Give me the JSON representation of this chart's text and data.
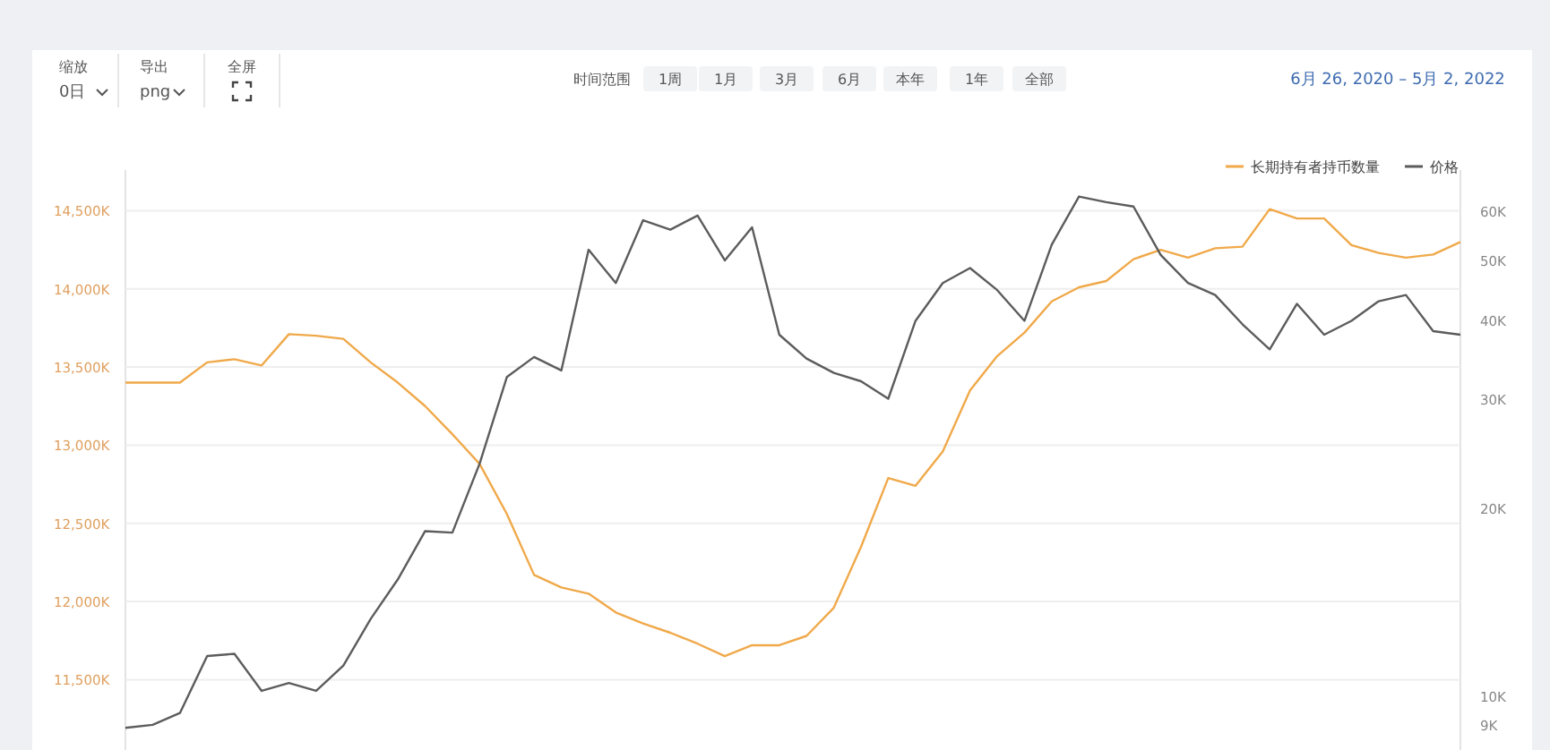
{
  "chart_data": {
    "type": "line",
    "subtitle": "6月 26, 2020 – 5月 2, 2022",
    "annotations": [
      "缩放",
      "0日",
      "导出",
      "png",
      "全屏",
      "时间范围",
      "1周",
      "1月",
      "3月",
      "6月",
      "本年",
      "1年",
      "全部"
    ],
    "categories": [
      null,
      null,
      null,
      null,
      null,
      null,
      null,
      null,
      null,
      null,
      null,
      null,
      null,
      null,
      null,
      null,
      null,
      null,
      null,
      null,
      null,
      null,
      null,
      null,
      null,
      null,
      null,
      null,
      null,
      null,
      null,
      null,
      null,
      null,
      null,
      null,
      null,
      null,
      null,
      null,
      null,
      null,
      null,
      null,
      null,
      null,
      null,
      null,
      null,
      null
    ],
    "ylim": [
      11050,
      14760
    ],
    "yticks": [
      {
        "value": 11500,
        "label": "11,500K"
      },
      {
        "value": 12000,
        "label": "12,000K"
      },
      {
        "value": 12500,
        "label": "12,500K"
      },
      {
        "value": 13000,
        "label": "13,000K"
      },
      {
        "value": 13500,
        "label": "13,500K"
      },
      {
        "value": 14000,
        "label": "14,000K"
      },
      {
        "value": 14500,
        "label": "14,500K"
      }
    ],
    "y2lim": [
      8.2,
      69.8
    ],
    "y2ticks": [
      {
        "value": 9,
        "label": "9K"
      },
      {
        "value": 10,
        "label": "10K"
      },
      {
        "value": 20,
        "label": "20K"
      },
      {
        "value": 30,
        "label": "30K"
      },
      {
        "value": 40,
        "label": "40K"
      },
      {
        "value": 50,
        "label": "50K"
      },
      {
        "value": 60,
        "label": "60K"
      }
    ],
    "log": "y2",
    "grid": "y",
    "legend": "top right",
    "tick_labels": "y",
    "series": [
      {
        "name": "长期持有者持币数量",
        "color": "#f0a94a",
        "values": [
          13400,
          13400,
          13400,
          13530,
          13550,
          13510,
          13710,
          13700,
          13680,
          13530,
          13400,
          13250,
          13070,
          12880,
          12560,
          12170,
          12090,
          12050,
          11930,
          11860,
          11800,
          11730,
          11650,
          11720,
          11720,
          11780,
          11960,
          12350,
          12790,
          12740,
          12960,
          13350,
          13570,
          13720,
          13920,
          14010,
          14050,
          14190,
          14250,
          14200,
          14260,
          14270,
          14510,
          14450,
          14450,
          14280,
          14230,
          14200,
          14220,
          14300
        ]
      },
      {
        "name": "价格",
        "color": "#5c5c5c",
        "axis": "y2",
        "values": [
          8.9,
          9.0,
          9.4,
          11.6,
          11.7,
          10.2,
          10.5,
          10.2,
          11.2,
          13.3,
          15.4,
          18.4,
          18.3,
          23.6,
          32.5,
          35,
          33.3,
          52,
          46,
          58,
          56,
          59,
          50,
          56.5,
          38,
          34.8,
          33,
          32,
          30,
          40,
          46,
          48.6,
          44.8,
          40,
          53,
          63.3,
          62,
          61,
          51,
          46,
          44,
          39.5,
          36,
          42.6,
          38,
          40,
          43,
          44,
          38.5,
          38
        ]
      }
    ]
  }
}
